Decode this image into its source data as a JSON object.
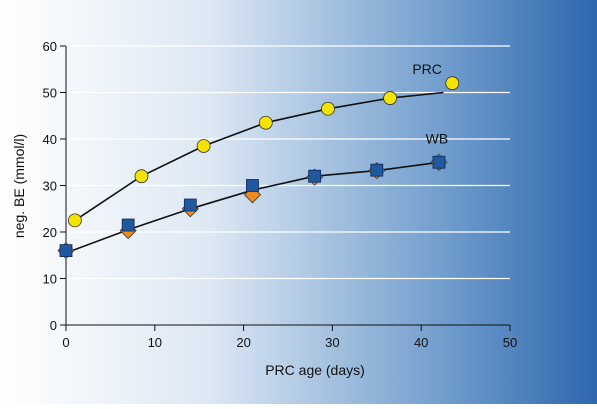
{
  "chart_data": {
    "type": "scatter",
    "title": "",
    "xlabel": "PRC age (days)",
    "ylabel": "neg. BE (mmol/l)",
    "xlim": [
      0,
      50
    ],
    "ylim": [
      0,
      60
    ],
    "x_ticks": [
      "0",
      "10",
      "20",
      "30",
      "40",
      "50"
    ],
    "y_ticks": [
      "0",
      "10",
      "20",
      "30",
      "40",
      "50",
      "60"
    ],
    "grid": "horizontal",
    "colors": {
      "background_left": "#ffffff",
      "background_right": "#2f66ae",
      "prc_marker": "#f6e400",
      "wb_square": "#2058a0",
      "wb_diamond": "#f08a1c",
      "line": "#111111",
      "grid": "#ffffff"
    },
    "series": [
      {
        "name": "PRC",
        "marker": "circle",
        "points": [
          [
            1,
            22.5
          ],
          [
            8.5,
            32
          ],
          [
            15.5,
            38.5
          ],
          [
            22.5,
            43.5
          ],
          [
            29.5,
            46.5
          ],
          [
            36.5,
            48.8
          ],
          [
            43.5,
            52
          ]
        ],
        "fit_line": [
          [
            1,
            22.5
          ],
          [
            8.5,
            32
          ],
          [
            15.5,
            38.5
          ],
          [
            22.5,
            43.5
          ],
          [
            29.5,
            46.5
          ],
          [
            36.5,
            48.8
          ],
          [
            42.5,
            50
          ]
        ]
      },
      {
        "name": "WB",
        "marker": "square",
        "points": [
          [
            0,
            16
          ],
          [
            7,
            21.5
          ],
          [
            14,
            25.8
          ],
          [
            21,
            30
          ],
          [
            28,
            32
          ],
          [
            35,
            33.3
          ],
          [
            42,
            35
          ]
        ]
      },
      {
        "name": "",
        "marker": "diamond",
        "points": [
          [
            0,
            16
          ],
          [
            7,
            20.3
          ],
          [
            14,
            25
          ],
          [
            21,
            28
          ],
          [
            28,
            31.8
          ],
          [
            35,
            33.2
          ],
          [
            42,
            35
          ]
        ]
      }
    ],
    "wb_line": [
      [
        0,
        15.5
      ],
      [
        7,
        20.5
      ],
      [
        14,
        25
      ],
      [
        21,
        29
      ],
      [
        28,
        32
      ],
      [
        35,
        33.2
      ],
      [
        42,
        35
      ]
    ],
    "annotations": [
      {
        "text": "PRC",
        "x": 39,
        "y": 54
      },
      {
        "text": "WB",
        "x": 40.5,
        "y": 39
      }
    ]
  }
}
